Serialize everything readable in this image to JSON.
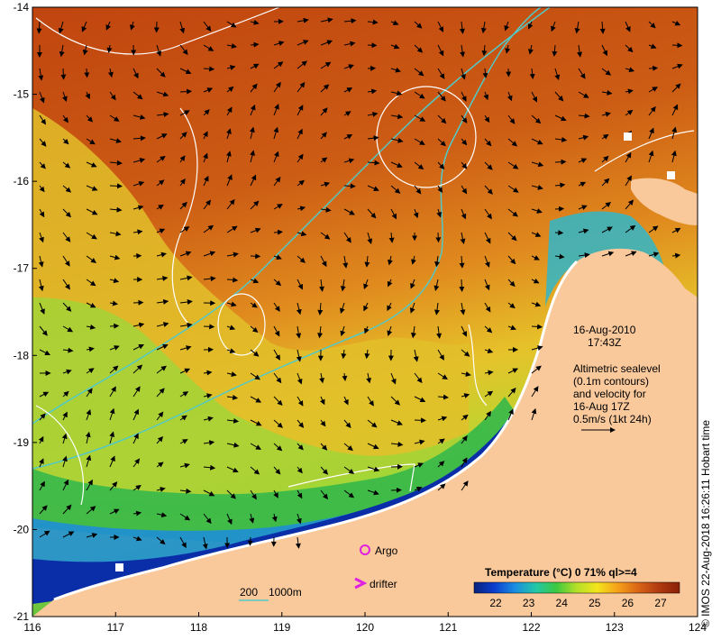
{
  "map": {
    "lat_ticks": [
      "-14",
      "-15",
      "-16",
      "-17",
      "-18",
      "-19",
      "-20",
      "-21"
    ],
    "lon_ticks": [
      "116",
      "117",
      "118",
      "119",
      "120",
      "121",
      "122",
      "123",
      "124"
    ],
    "lat_range": [
      -21,
      -14
    ],
    "lon_range": [
      116,
      124
    ],
    "colors": {
      "land": "#f9c99c",
      "warm": "#b54a10",
      "mid_warm": "#d97a1e",
      "mid": "#e7b92e",
      "cool": "#c8d830",
      "green": "#31b84a",
      "cyan": "#30b6c9",
      "blue": "#0a2ea8",
      "deep_blue": "#081a6e",
      "isobath": "#53c9c7",
      "contour": "#ffffff",
      "argo": "#e020e0"
    }
  },
  "annotations": {
    "date": "16-Aug-2010",
    "time": "17:43Z",
    "altimetry_lines": [
      "Altimetric sealevel",
      "(0.1m contours)",
      "and velocity for",
      "16-Aug 17Z",
      "0.5m/s (1kt 24h)"
    ]
  },
  "legend": {
    "argo_label": "Argo",
    "drifter_label": "drifter",
    "isobath_labels": [
      "200",
      "1000m"
    ],
    "colorbar_title": "Temperature (°C) 0 71% ql>=4",
    "colorbar_ticks": [
      "22",
      "23",
      "24",
      "25",
      "26",
      "27"
    ],
    "colorbar_colors": [
      "#08207a",
      "#0a3fd0",
      "#1a8ee0",
      "#22c7a8",
      "#3cc840",
      "#b6e028",
      "#f4e41c",
      "#f6a01a",
      "#d86416",
      "#b03a10",
      "#8a2006"
    ]
  },
  "credit": "© IMOS 22-Aug-2018 16:26:11 Hobart time"
}
